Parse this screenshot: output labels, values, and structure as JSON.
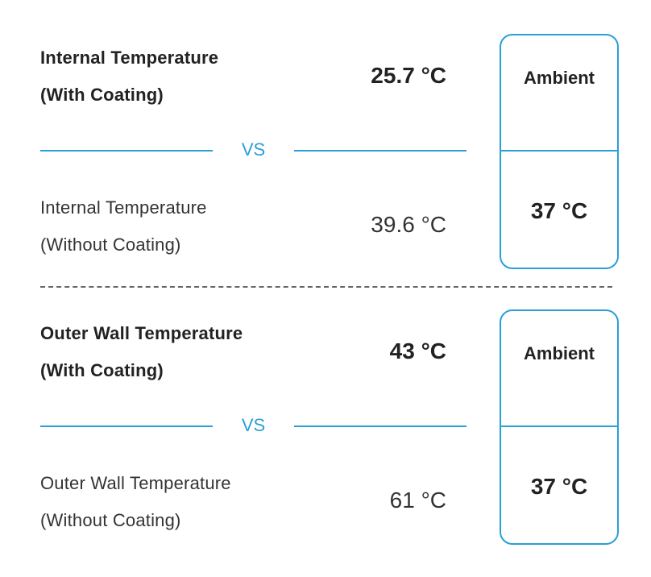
{
  "sections": [
    {
      "with_label_line1": "Internal Temperature",
      "with_label_line2": "(With Coating)",
      "with_value": "25.7 °C",
      "vs_label": "VS",
      "without_label_line1": "Internal Temperature",
      "without_label_line2": "(Without Coating)",
      "without_value": "39.6 °C",
      "ambient_title": "Ambient",
      "ambient_value": "37 °C"
    },
    {
      "with_label_line1": "Outer Wall Temperature",
      "with_label_line2": "(With Coating)",
      "with_value": "43 °C",
      "vs_label": "VS",
      "without_label_line1": "Outer Wall Temperature",
      "without_label_line2": "(Without Coating)",
      "without_value": "61 °C",
      "ambient_title": "Ambient",
      "ambient_value": "37 °C"
    }
  ],
  "colors": {
    "accent": "#2a9fd8",
    "text": "#222222",
    "separator": "#666666"
  }
}
